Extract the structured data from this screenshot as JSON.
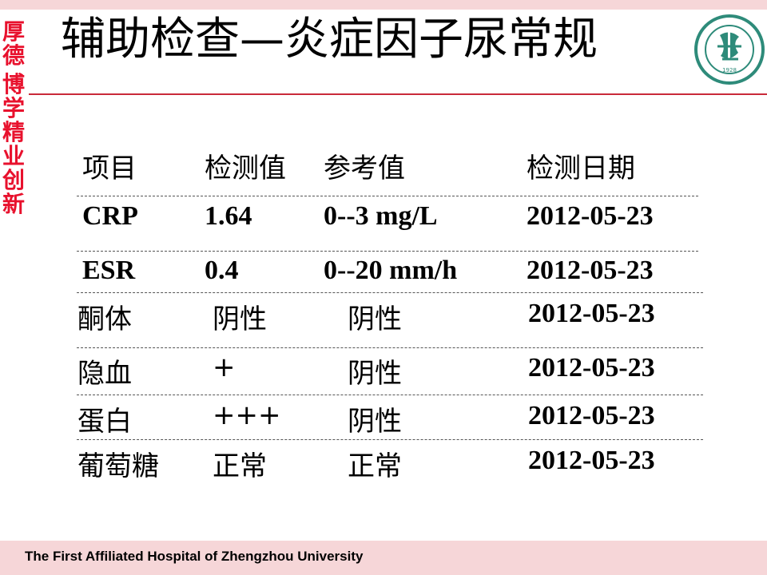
{
  "slide": {
    "title": "辅助检查—炎症因子尿常规",
    "motto": [
      "厚",
      "德",
      "博",
      "学",
      "精",
      "业",
      "创",
      "新"
    ],
    "footer": "The First Affiliated Hospital of Zhengzhou University",
    "logo_text": "1928"
  },
  "table": {
    "headers": [
      "项目",
      "检测值",
      "参考值",
      "检测日期"
    ],
    "rows": [
      [
        "CRP",
        "1.64",
        "0--3 mg/L",
        "2012-05-23"
      ],
      [
        "ESR",
        "0.4",
        "0--20 mm/h",
        "2012-05-23"
      ],
      [
        "酮体",
        "阴性",
        "阴性",
        "2012-05-23"
      ],
      [
        "隐血",
        "+",
        "阴性",
        "2012-05-23"
      ],
      [
        "蛋白",
        "+++",
        "阴性",
        "2012-05-23"
      ],
      [
        "葡萄糖",
        "正常",
        "正常",
        "2012-05-23"
      ]
    ]
  },
  "colors": {
    "accent_red": "#e8112d",
    "band_pink": "#f6d6d8",
    "logo_green": "#2e8b7a"
  }
}
